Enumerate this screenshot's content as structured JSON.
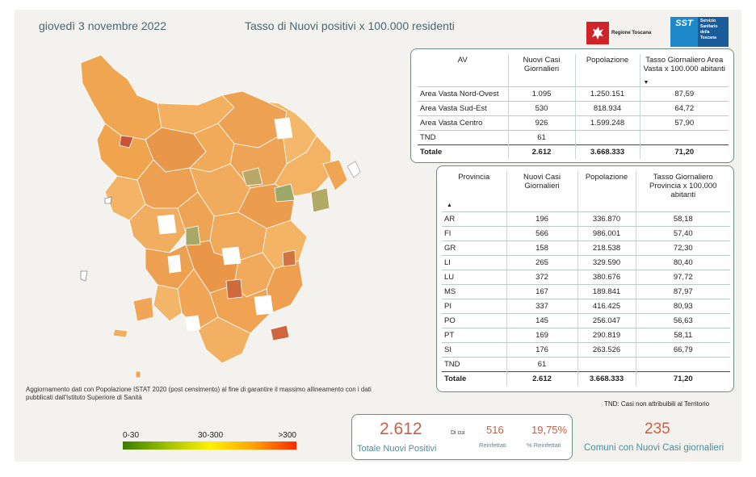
{
  "header": {
    "date": "giovedì 3 novembre 2022",
    "title": "Tasso di Nuovi positivi x 100.000 residenti"
  },
  "logos": {
    "regione": "Regione Toscana",
    "sst": "SST",
    "sst_sub": "Servizio Sanitario della Toscana"
  },
  "note": "Aggiornamento dati con Popolazione ISTAT 2020 (post censimento) al fine di garantire il massimo allineamento con i dati pubblicati dall'Istituto Superiore di Sanità",
  "legend": {
    "labels": [
      "0-30",
      "30-300",
      ">300"
    ],
    "colors": [
      "#3a7d00",
      "#9ec000",
      "#fff200",
      "#ffa400",
      "#ff2a00"
    ]
  },
  "av_table": {
    "headers": [
      "AV",
      "Nuovi Casi Giornalieri",
      "Popolazione",
      "Tasso Giornaliero Area Vasta x 100.000 abitanti"
    ],
    "rows": [
      [
        "Area Vasta Nord-Ovest",
        "1.095",
        "1.250.151",
        "87,59"
      ],
      [
        "Area Vasta Sud-Est",
        "530",
        "818.934",
        "64,72"
      ],
      [
        "Area Vasta Centro",
        "926",
        "1.599.248",
        "57,90"
      ],
      [
        "TND",
        "61",
        "",
        ""
      ]
    ],
    "total": [
      "Totale",
      "2.612",
      "3.668.333",
      "71,20"
    ]
  },
  "prov_table": {
    "headers": [
      "Provincia",
      "Nuovi Casi Giornalieri",
      "Popolazione",
      "Tasso Giornaliero Provincia x 100.000 abitanti"
    ],
    "rows": [
      [
        "AR",
        "196",
        "336.870",
        "58,18"
      ],
      [
        "FI",
        "566",
        "986.001",
        "57,40"
      ],
      [
        "GR",
        "158",
        "218.538",
        "72,30"
      ],
      [
        "LI",
        "265",
        "329.590",
        "80,40"
      ],
      [
        "LU",
        "372",
        "380.676",
        "97,72"
      ],
      [
        "MS",
        "167",
        "189.841",
        "87,97"
      ],
      [
        "PI",
        "337",
        "416.425",
        "80,93"
      ],
      [
        "PO",
        "145",
        "256.047",
        "56,63"
      ],
      [
        "PT",
        "169",
        "290.819",
        "58,11"
      ],
      [
        "SI",
        "176",
        "263.526",
        "66,79"
      ],
      [
        "TND",
        "61",
        "",
        ""
      ]
    ],
    "total": [
      "Totale",
      "2.612",
      "3.668.333",
      "71,20"
    ]
  },
  "tnd_note": "TND: Casi non attribuibili al Territorio",
  "kpi": {
    "total_value": "2.612",
    "total_label": "Totale Nuovi Positivi",
    "di_cui": "Di cui",
    "reinfected_value": "516",
    "reinfected_label": "Reinfettati",
    "reinfected_pct": "19,75%",
    "reinfected_pct_label": "% Reinfettati",
    "comuni_value": "235",
    "comuni_label": "Comuni con Nuovi Casi giornalieri"
  }
}
